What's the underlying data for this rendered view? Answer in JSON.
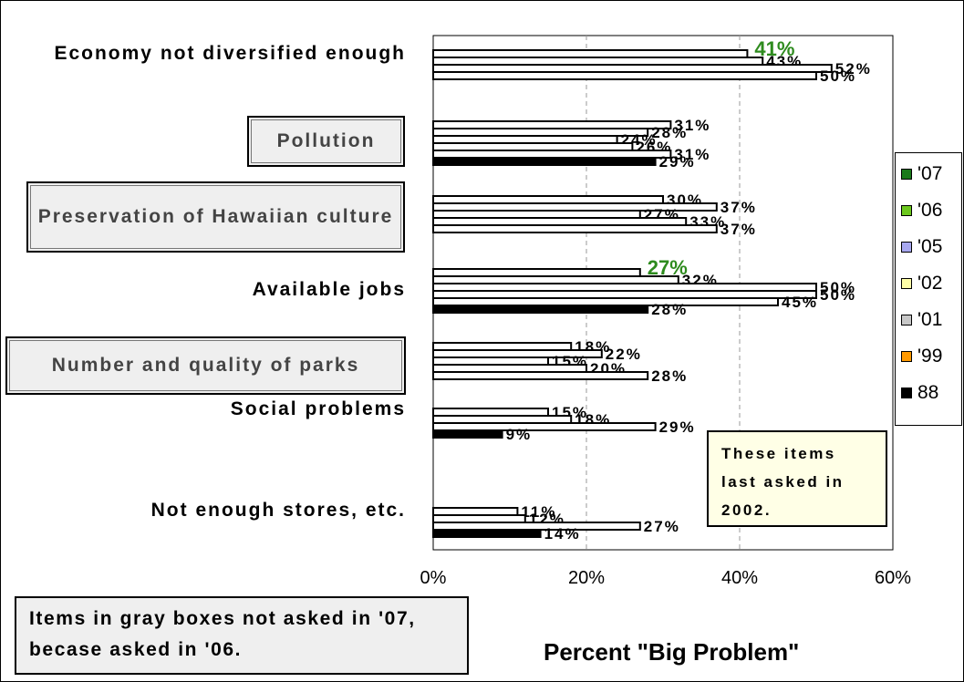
{
  "chart_data": {
    "type": "bar",
    "orientation": "horizontal",
    "xlabel": "Percent \"Big Problem\"",
    "xlim": [
      0,
      60
    ],
    "x_ticks": [
      "0%",
      "20%",
      "40%",
      "60%"
    ],
    "grid": "vertical dashed at 20% and 40%",
    "legend_position": "right",
    "series": [
      {
        "name": "'07",
        "color": "#1a7a1a"
      },
      {
        "name": "'06",
        "color": "#6cc81e"
      },
      {
        "name": "'05",
        "color": "#a8a8f0"
      },
      {
        "name": "'02",
        "color": "#ffffa8"
      },
      {
        "name": "'01",
        "color": "#c8c8c8"
      },
      {
        "name": "'99",
        "color": "#ff9900"
      },
      {
        "name": "88",
        "color": "#000000"
      }
    ],
    "categories": [
      {
        "label": "Economy not diversified enough",
        "boxed": false,
        "bars": [
          {
            "value": 41,
            "label": "41%",
            "highlight": true
          },
          {
            "value": 43,
            "label": "43%"
          },
          {
            "value": 52,
            "label": "52%"
          },
          {
            "value": 50,
            "label": "50%"
          }
        ]
      },
      {
        "label": "Pollution",
        "boxed": true,
        "bars": [
          {
            "value": 31,
            "label": "31%"
          },
          {
            "value": 28,
            "label": "28%"
          },
          {
            "value": 24,
            "label": "24%"
          },
          {
            "value": 26,
            "label": "26%"
          },
          {
            "value": 31,
            "label": "31%"
          },
          {
            "value": 29,
            "label": "29%",
            "dark": true
          }
        ]
      },
      {
        "label": "Preservation of Hawaiian culture",
        "boxed": true,
        "bars": [
          {
            "value": 30,
            "label": "30%"
          },
          {
            "value": 37,
            "label": "37%"
          },
          {
            "value": 27,
            "label": "27%"
          },
          {
            "value": 33,
            "label": "33%"
          },
          {
            "value": 37,
            "label": "37%"
          }
        ]
      },
      {
        "label": "Available jobs",
        "boxed": false,
        "bars": [
          {
            "value": 27,
            "label": "27%",
            "highlight": true
          },
          {
            "value": 32,
            "label": "32%"
          },
          {
            "value": 50,
            "label": "50%"
          },
          {
            "value": 50,
            "label": "50%"
          },
          {
            "value": 45,
            "label": "45%"
          },
          {
            "value": 28,
            "label": "28%",
            "dark": true
          }
        ]
      },
      {
        "label": "Number and quality of parks",
        "boxed": true,
        "bars": [
          {
            "value": 18,
            "label": "18%"
          },
          {
            "value": 22,
            "label": "22%"
          },
          {
            "value": 15,
            "label": "15%"
          },
          {
            "value": 20,
            "label": "20%"
          },
          {
            "value": 28,
            "label": "28%"
          }
        ]
      },
      {
        "label": "Social problems",
        "boxed": false,
        "bars": [
          {
            "value": 15,
            "label": "15%"
          },
          {
            "value": 18,
            "label": "18%"
          },
          {
            "value": 29,
            "label": "29%"
          },
          {
            "value": 9,
            "label": "9%",
            "dark": true
          }
        ]
      },
      {
        "label": "Not enough stores, etc.",
        "boxed": false,
        "bars": [
          {
            "value": 11,
            "label": "11%"
          },
          {
            "value": 12,
            "label": "12%"
          },
          {
            "value": 27,
            "label": "27%"
          },
          {
            "value": 14,
            "label": "14%",
            "dark": true
          }
        ]
      }
    ]
  },
  "notes": {
    "items_2002": "These items last asked in 2002.",
    "gray_boxes": "Items in gray boxes not asked in '07, becase asked in '06."
  }
}
